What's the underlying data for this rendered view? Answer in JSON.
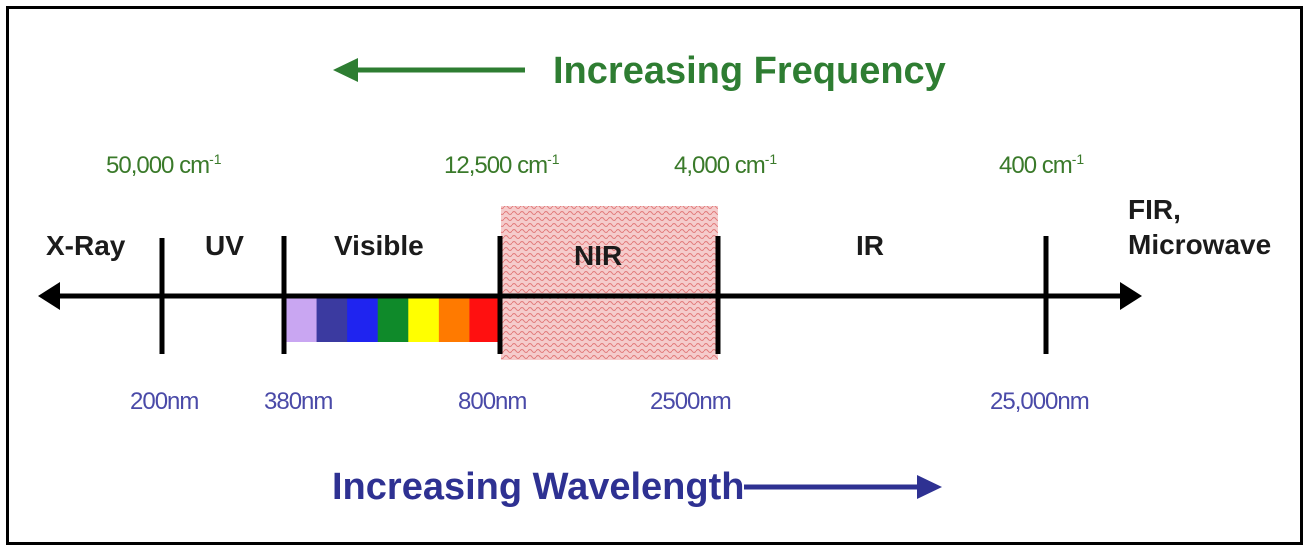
{
  "colors": {
    "frequency": "#2e7d32",
    "wavelength": "#2e3192",
    "wavenumber_text": "#3a7a2a",
    "nm_text": "#4a4aa8",
    "axis": "#000000",
    "nir_fill": "#f2c4c4",
    "nir_dots": "#e07070"
  },
  "titles": {
    "frequency": "Increasing Frequency",
    "wavelength": "Increasing Wavelength"
  },
  "wavenumbers": [
    {
      "value": "50,000 cm",
      "exp": "-1"
    },
    {
      "value": "12,500 cm",
      "exp": "-1"
    },
    {
      "value": "4,000 cm",
      "exp": "-1"
    },
    {
      "value": "400 cm",
      "exp": "-1"
    }
  ],
  "wavelengths": [
    "200nm",
    "380nm",
    "800nm",
    "2500nm",
    "25,000nm"
  ],
  "regions": {
    "xray": "X-Ray",
    "uv": "UV",
    "visible": "Visible",
    "nir": "NIR",
    "ir": "IR",
    "fir_line1": "FIR,",
    "fir_line2": "Microwave"
  },
  "spectrum_colors": [
    "#c9a6f2",
    "#3b3aa0",
    "#1f24f0",
    "#0f8a2a",
    "#ffff00",
    "#ff7a00",
    "#ff1010"
  ]
}
